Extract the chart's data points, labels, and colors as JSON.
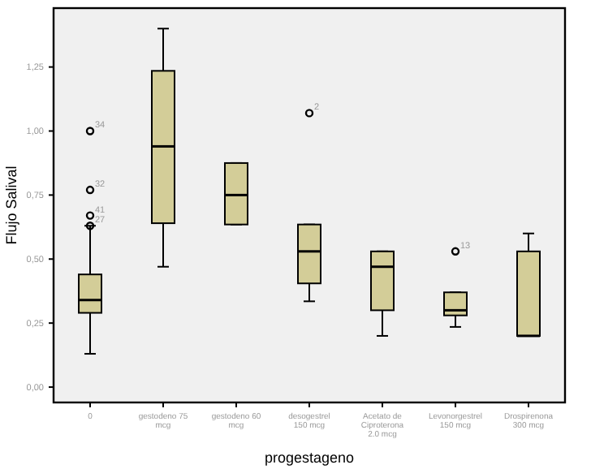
{
  "chart_data": {
    "type": "box",
    "xlabel": "progestageno",
    "ylabel": "Flujo Salival",
    "categories": [
      "0",
      "gestodeno 75 mcg",
      "gestodeno 60 mcg",
      "desogestrel 150 mcg",
      "Acetato de Ciproterona 2.0 mcg",
      "Levonorgestrel 150 mcg",
      "Drospirenona 300 mcg"
    ],
    "boxes": [
      {
        "low": 0.13,
        "q1": 0.29,
        "median": 0.34,
        "q3": 0.44,
        "high": 0.63
      },
      {
        "low": 0.47,
        "q1": 0.64,
        "median": 0.94,
        "q3": 1.235,
        "high": 1.4
      },
      {
        "low": 0.635,
        "q1": 0.635,
        "median": 0.75,
        "q3": 0.875,
        "high": 0.875
      },
      {
        "low": 0.335,
        "q1": 0.405,
        "median": 0.53,
        "q3": 0.635,
        "high": 0.635
      },
      {
        "low": 0.2,
        "q1": 0.3,
        "median": 0.47,
        "q3": 0.53,
        "high": 0.53
      },
      {
        "low": 0.235,
        "q1": 0.28,
        "median": 0.3,
        "q3": 0.37,
        "high": 0.37
      },
      {
        "low": 0.2,
        "q1": 0.2,
        "median": 0.2,
        "q3": 0.53,
        "high": 0.6
      }
    ],
    "color": "#d3cd98",
    "series": [
      {
        "type": "scatter",
        "color": "#000000",
        "x": [
          "0",
          "0",
          "0",
          "0",
          "desogestrel 150 mcg",
          "Levonorgestrel 150 mcg"
        ],
        "values": [
          1.0,
          0.77,
          0.67,
          0.63,
          1.07,
          0.53
        ]
      }
    ],
    "marker": "circle",
    "annotations": [
      {
        "text": "34",
        "x": "0",
        "y": 1.0
      },
      {
        "text": "32",
        "x": "0",
        "y": 0.77
      },
      {
        "text": "41",
        "x": "0",
        "y": 0.67
      },
      {
        "text": "27",
        "x": "0",
        "y": 0.63
      },
      {
        "text": "2",
        "x": "desogestrel 150 mcg",
        "y": 1.07
      },
      {
        "text": "13",
        "x": "Levonorgestrel 150 mcg",
        "y": 0.53
      }
    ],
    "ylim": [
      -0.06,
      1.48
    ],
    "yticks": [
      {
        "value": 0,
        "label": "0,00"
      },
      {
        "value": 0.25,
        "label": "0,25"
      },
      {
        "value": 0.5,
        "label": "0,50"
      },
      {
        "value": 0.75,
        "label": "0,75"
      },
      {
        "value": 1.0,
        "label": "1,00"
      },
      {
        "value": 1.25,
        "label": "1,25"
      }
    ],
    "grid": false
  }
}
